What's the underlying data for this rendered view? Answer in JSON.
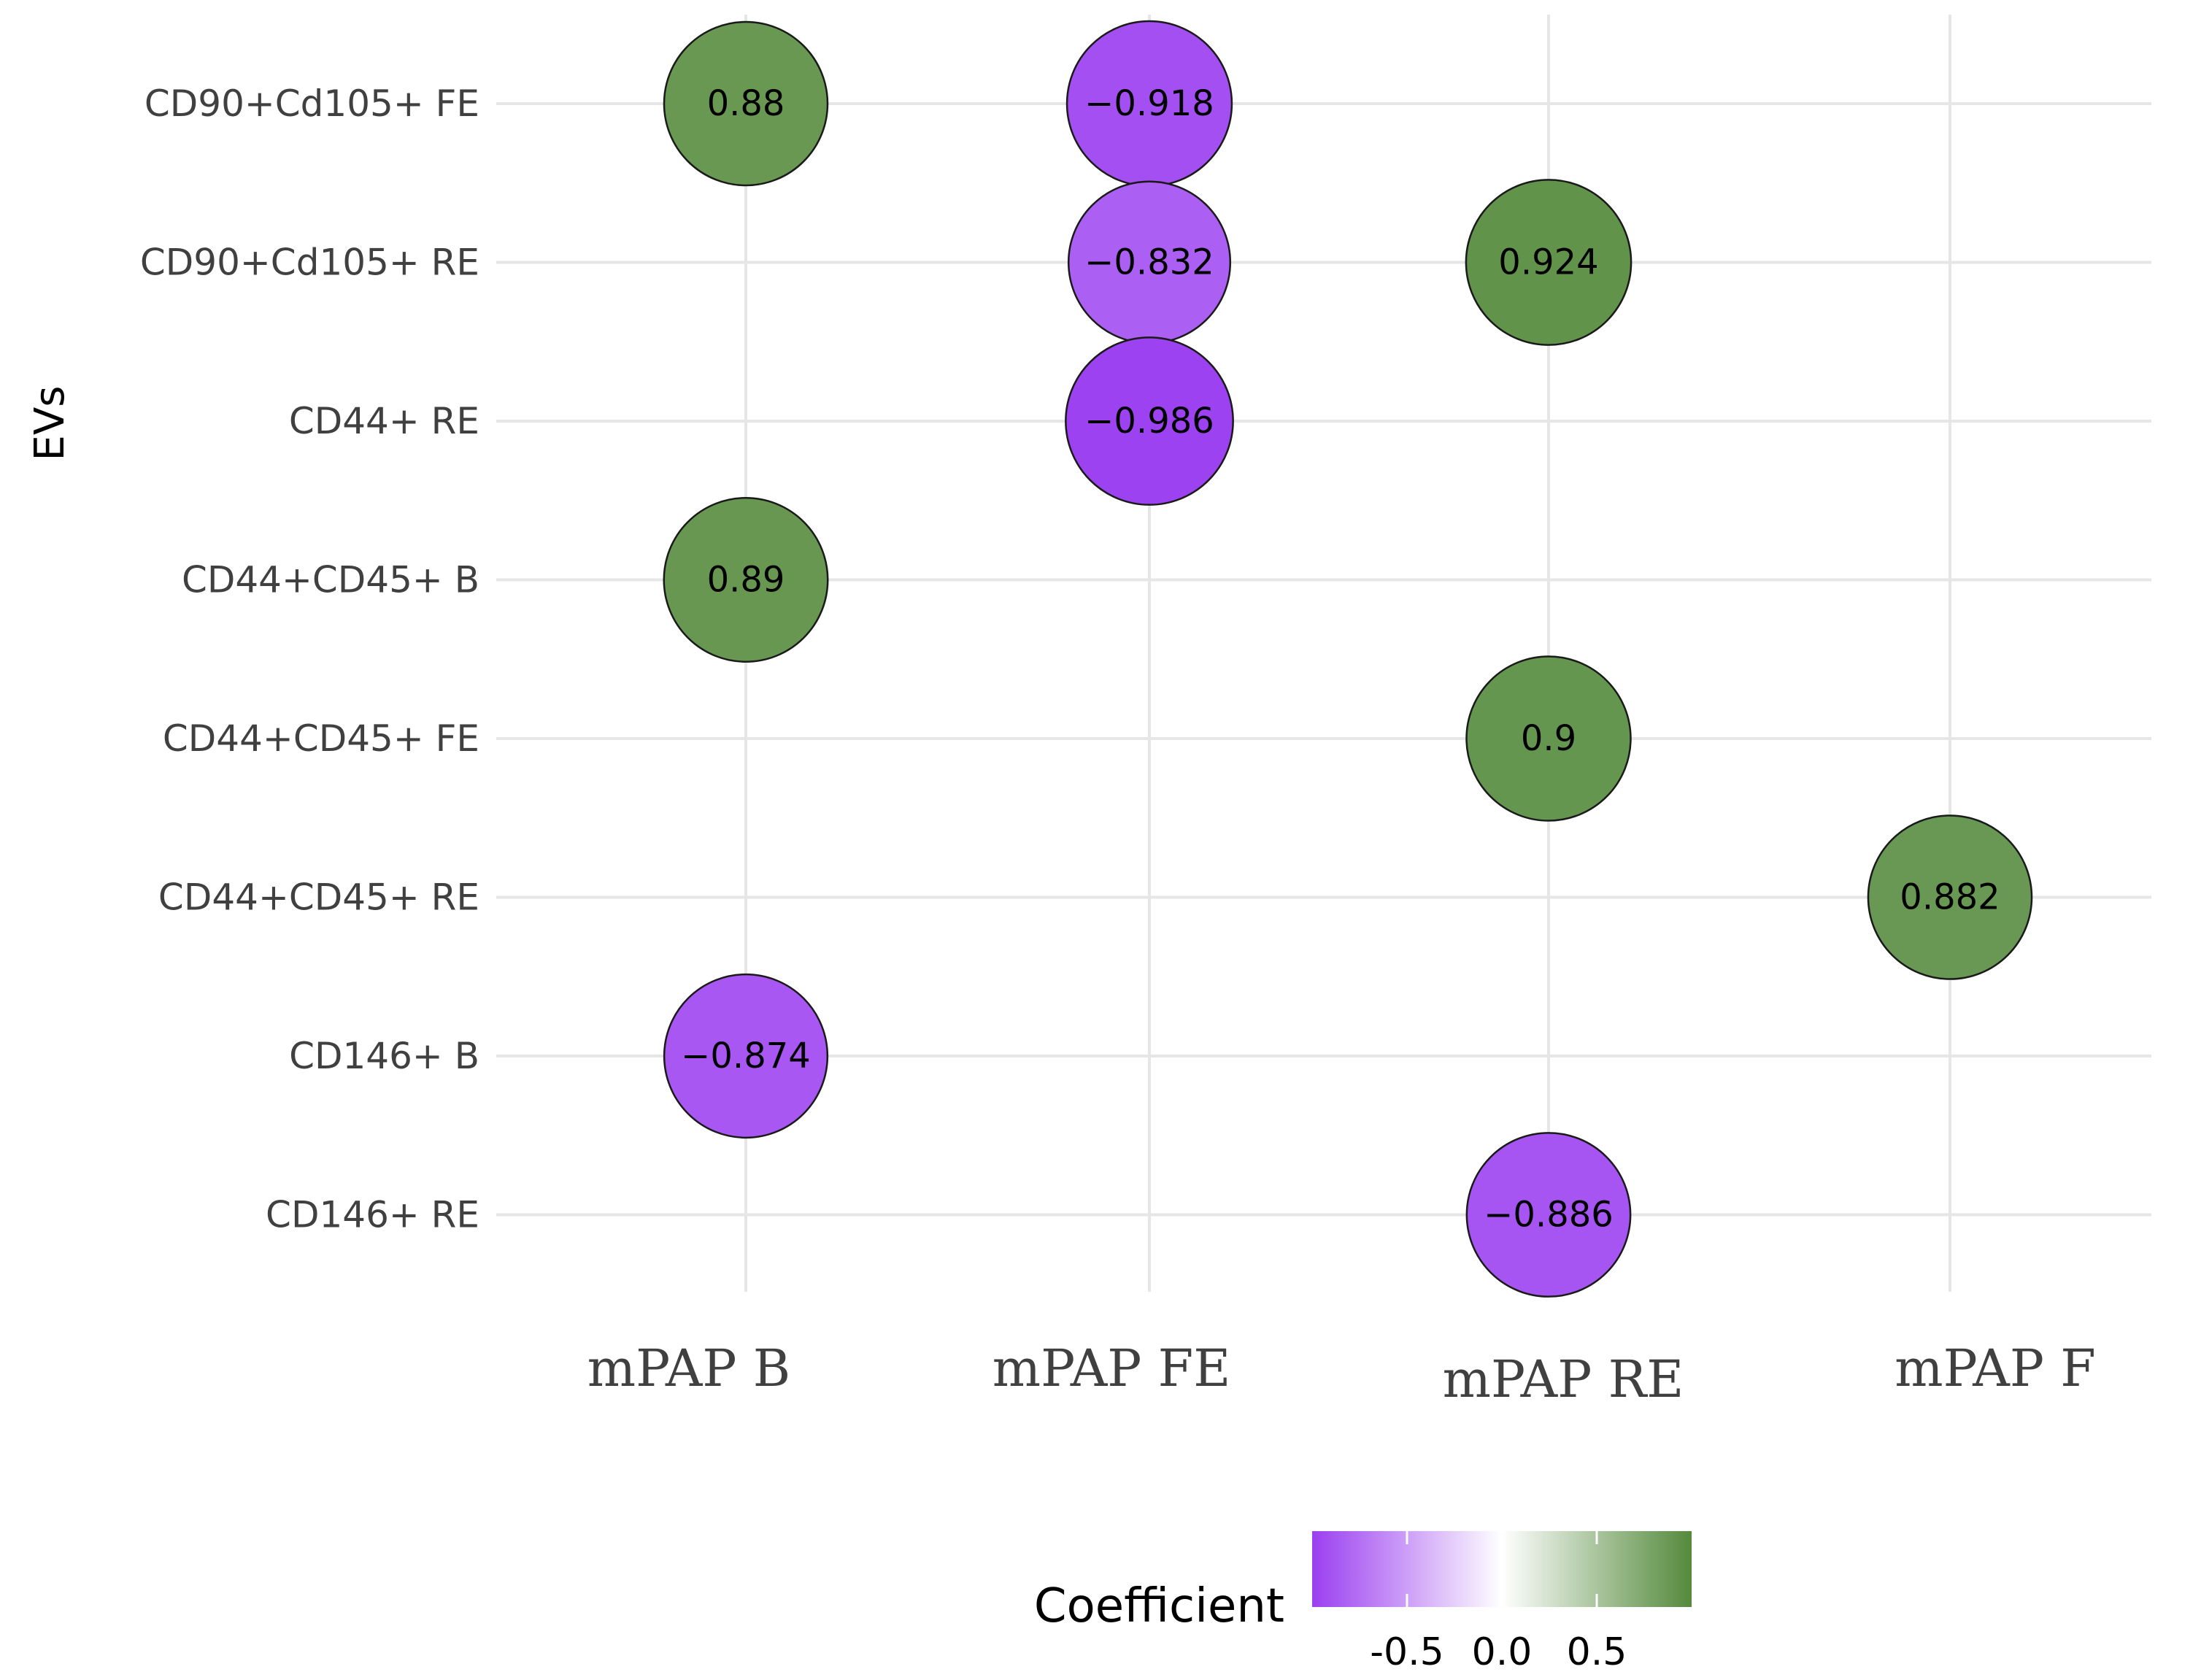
{
  "chart_data": {
    "type": "bubble",
    "ylabel": "EVs",
    "xlabel": "",
    "categories_x": [
      "mPAP B",
      "mPAP FE",
      "mPAP RE",
      "mPAP F"
    ],
    "categories_y": [
      "CD90+Cd105+ FE",
      "CD90+Cd105+ RE",
      "CD44+ RE",
      "CD44+CD45+ B",
      "CD44+CD45+ FE",
      "CD44+CD45+ RE",
      "CD146+ B",
      "CD146+ RE"
    ],
    "points": [
      {
        "x": "mPAP B",
        "y": "CD90+Cd105+ FE",
        "value": 0.88,
        "label": "0.88"
      },
      {
        "x": "mPAP FE",
        "y": "CD90+Cd105+ FE",
        "value": -0.918,
        "label": "−0.918"
      },
      {
        "x": "mPAP FE",
        "y": "CD90+Cd105+ RE",
        "value": -0.832,
        "label": "−0.832"
      },
      {
        "x": "mPAP RE",
        "y": "CD90+Cd105+ RE",
        "value": 0.924,
        "label": "0.924"
      },
      {
        "x": "mPAP FE",
        "y": "CD44+ RE",
        "value": -0.986,
        "label": "−0.986"
      },
      {
        "x": "mPAP B",
        "y": "CD44+CD45+ B",
        "value": 0.89,
        "label": "0.89"
      },
      {
        "x": "mPAP RE",
        "y": "CD44+CD45+ FE",
        "value": 0.9,
        "label": "0.9"
      },
      {
        "x": "mPAP F",
        "y": "CD44+CD45+ RE",
        "value": 0.882,
        "label": "0.882"
      },
      {
        "x": "mPAP B",
        "y": "CD146+ B",
        "value": -0.874,
        "label": "−0.874"
      },
      {
        "x": "mPAP RE",
        "y": "CD146+ RE",
        "value": -0.886,
        "label": "−0.886"
      }
    ],
    "legend": {
      "title": "Coefficient",
      "position": "bottom",
      "range": [
        -1,
        1
      ],
      "ticks": [
        -0.5,
        0.0,
        0.5
      ],
      "tick_labels": [
        "-0.5",
        "0.0",
        "0.5"
      ]
    },
    "colors": {
      "negative": "#9b3ff0",
      "mid": "#ffffff",
      "positive": "#548a3c",
      "grid": "#e6e6e6"
    },
    "grid": true
  }
}
